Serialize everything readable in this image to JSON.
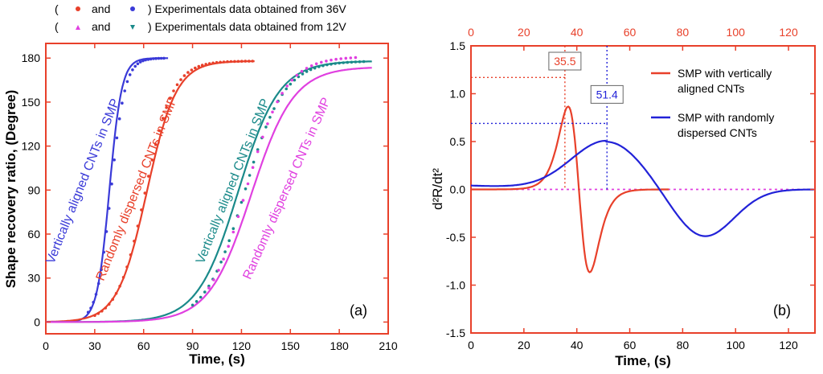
{
  "legend": {
    "row1": {
      "open": "(",
      "mid": "and",
      "close": ") Experimentals data obtained from 36V",
      "c1": "#e8402a",
      "c2": "#3a3ad8"
    },
    "row2": {
      "open": "(",
      "mid": "and",
      "close": ") Experimentals data obtained from 12V",
      "c1": "#e040e0",
      "c2": "#1a8a8a"
    }
  },
  "chart_data": [
    {
      "type": "line",
      "panel_label": "(a)",
      "xlabel": "Time, (s)",
      "ylabel": "Shape recovery ratio, (Degree)",
      "xlim": [
        0,
        210
      ],
      "ylim": [
        -8,
        190
      ],
      "xticks": [
        0,
        30,
        60,
        90,
        120,
        150,
        180,
        210
      ],
      "yticks": [
        0,
        30,
        60,
        90,
        120,
        150,
        180
      ],
      "series": [
        {
          "name": "Vertically aligned CNTs in SMP",
          "color": "#3a3ad8",
          "kind": "fit",
          "t0": 0,
          "t1": 75,
          "mid": 39,
          "width": 3.8,
          "max": 180,
          "base": 0
        },
        {
          "name": "Randomly dispersed CNTs in SMP",
          "color": "#e8402a",
          "kind": "fit",
          "t0": 0,
          "t1": 128,
          "mid": 62,
          "width": 9,
          "max": 178,
          "base": 0
        },
        {
          "name": "Vertically aligned CNTs in SMP",
          "color": "#1a8a8a",
          "kind": "fit",
          "t0": 0,
          "t1": 200,
          "mid": 118,
          "width": 12.5,
          "max": 178,
          "base": 0
        },
        {
          "name": "Randomly dispersed CNTs in SMP",
          "color": "#e040e0",
          "kind": "fit",
          "t0": 0,
          "t1": 200,
          "mid": 126,
          "width": 13,
          "max": 174,
          "base": 0
        },
        {
          "name": "36V vertical data",
          "color": "#3a3ad8",
          "kind": "dots",
          "t0": 26,
          "t1": 73,
          "step": 1.6,
          "mid": 40,
          "width": 4.3,
          "max": 180,
          "base": 0
        },
        {
          "name": "36V random data",
          "color": "#e8402a",
          "kind": "dots",
          "t0": 30,
          "t1": 128,
          "step": 2.2,
          "mid": 61,
          "width": 8.5,
          "max": 178,
          "base": 0
        },
        {
          "name": "12V vertical data",
          "color": "#1a8a8a",
          "kind": "dots",
          "t0": 90,
          "t1": 195,
          "step": 2.5,
          "mid": 122,
          "width": 12,
          "max": 178,
          "base": 0
        },
        {
          "name": "12V random data",
          "color": "#e040e0",
          "kind": "dots",
          "t0": 100,
          "t1": 190,
          "step": 3,
          "mid": 123,
          "width": 12,
          "max": 181,
          "base": 0
        }
      ],
      "annotations": [
        {
          "text": "Vertically aligned CNTs in SMP",
          "color": "#3a3ad8",
          "x": 25,
          "y": 95,
          "angle": -68
        },
        {
          "text": "Randomly dispersed CNTs in SMP",
          "color": "#e8402a",
          "x": 58,
          "y": 90,
          "angle": -68
        },
        {
          "text": "Vertically aligned CNTs in SMP",
          "color": "#1a8a8a",
          "x": 117,
          "y": 95,
          "angle": -68
        },
        {
          "text": "Randomly dispersed CNTs in SMP",
          "color": "#e040e0",
          "x": 150,
          "y": 90,
          "angle": -66
        }
      ]
    },
    {
      "type": "line",
      "panel_label": "(b)",
      "xlabel": "Time, (s)",
      "ylabel": "d²R/dt²",
      "xlim": [
        0,
        130
      ],
      "ylim": [
        -1.5,
        1.5
      ],
      "xticks": [
        0,
        20,
        40,
        60,
        80,
        100,
        120
      ],
      "yticks": [
        -1.5,
        -1.0,
        -0.5,
        0.0,
        0.5,
        1.0,
        1.5
      ],
      "top_xticks": [
        0,
        20,
        40,
        60,
        80,
        100,
        120
      ],
      "series": [
        {
          "name": "SMP with vertically aligned CNTs",
          "color": "#e8402a",
          "kind": "deriv",
          "t0": 0,
          "t1": 75,
          "mid": 40.8,
          "width": 3.1,
          "amp": 9.0
        },
        {
          "name": "SMP with randomly dispersed CNTs",
          "color": "#2222d8",
          "kind": "damped",
          "t0": 0,
          "t1": 130
        }
      ],
      "legend": [
        {
          "line1": "SMP with vertically",
          "line2": "aligned CNTs",
          "color": "#e8402a"
        },
        {
          "line1": "SMP with randomly",
          "line2": "dispersed CNTs",
          "color": "#2222d8"
        }
      ],
      "markers": [
        {
          "x": 35.5,
          "y": 1.17,
          "label": "35.5",
          "color": "#e8402a"
        },
        {
          "x": 51.4,
          "y": 0.69,
          "label": "51.4",
          "color": "#2222d8"
        }
      ]
    }
  ]
}
